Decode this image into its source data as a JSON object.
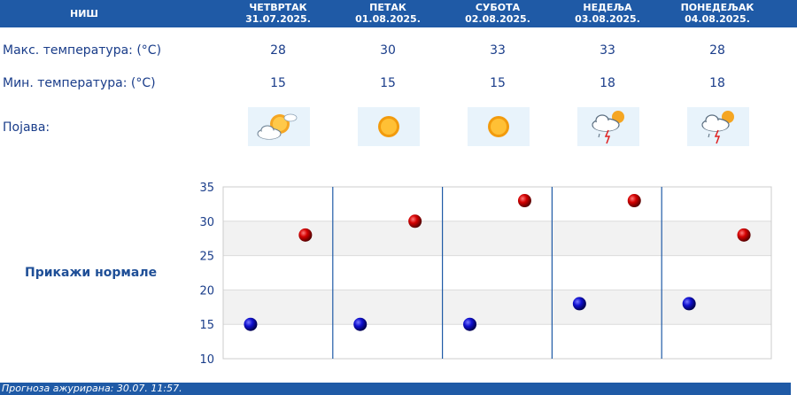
{
  "header": {
    "city": "НИШ",
    "days": [
      {
        "name": "ЧЕТВРТАК",
        "date": "31.07.2025."
      },
      {
        "name": "ПЕТАК",
        "date": "01.08.2025."
      },
      {
        "name": "СУБОТА",
        "date": "02.08.2025."
      },
      {
        "name": "НЕДЕЉА",
        "date": "03.08.2025."
      },
      {
        "name": "ПОНЕДЕЉАК",
        "date": "04.08.2025."
      }
    ]
  },
  "rows": {
    "max_label": "Макс. температура: (°C)",
    "min_label": "Мин. температура: (°C)",
    "weather_label": "Појава:",
    "max": [
      "28",
      "30",
      "33",
      "33",
      "28"
    ],
    "min": [
      "15",
      "15",
      "15",
      "18",
      "18"
    ],
    "icons": [
      "sun-cloud-icon",
      "sun-icon",
      "sun-icon",
      "thunderstorm-icon",
      "thunderstorm-icon"
    ]
  },
  "normals_link": "Прикажи нормале",
  "footer": {
    "text": "Прогноза ажурирана:  30.07. 11:57."
  },
  "colors": {
    "header_bg": "#1f5aa6",
    "max_point": "#cc0000",
    "min_point": "#0000c8"
  },
  "chart_data": {
    "type": "scatter",
    "categories": [
      "31.07.2025.",
      "01.08.2025.",
      "02.08.2025.",
      "03.08.2025.",
      "04.08.2025."
    ],
    "series": [
      {
        "values": [
          15,
          15,
          15,
          18,
          18
        ]
      },
      {
        "values": [
          28,
          30,
          33,
          33,
          28
        ]
      }
    ],
    "ylim": [
      10,
      35
    ],
    "yticks": [
      "10",
      "15",
      "20",
      "25",
      "30",
      "35"
    ],
    "grid": true
  }
}
